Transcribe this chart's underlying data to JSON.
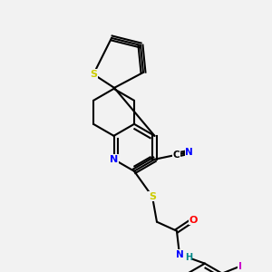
{
  "background_color": "#f2f2f2",
  "bond_color": "#000000",
  "atom_colors": {
    "N": "#0000ff",
    "S": "#cccc00",
    "O": "#ff0000",
    "I": "#cc00cc",
    "C": "#000000",
    "H": "#008888"
  },
  "figsize": [
    3.0,
    3.0
  ],
  "dpi": 100
}
